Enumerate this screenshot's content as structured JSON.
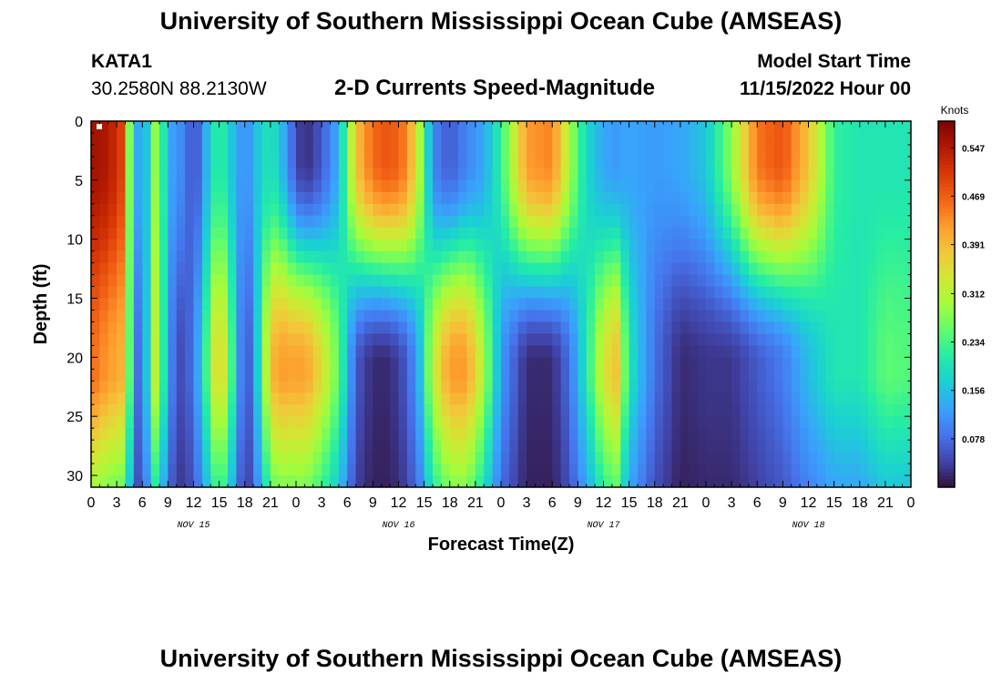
{
  "header": {
    "title": "University of Southern Mississippi Ocean Cube (AMSEAS)",
    "station_id": "KATA1",
    "station_coords": "30.2580N  88.2130W",
    "subtitle": "2-D Currents Speed-Magnitude",
    "model_label": "Model Start Time",
    "model_time": "11/15/2022 Hour 00"
  },
  "footer": {
    "title": "University of Southern Mississippi Ocean Cube (AMSEAS)"
  },
  "colors": {
    "scale": [
      "#30123b",
      "#4145ab",
      "#4675ed",
      "#39a2fc",
      "#1bcfd4",
      "#24eca6",
      "#61fc6c",
      "#a4fc3b",
      "#d1e834",
      "#f3c63a",
      "#fe9b2d",
      "#f36315",
      "#d93806",
      "#b11901",
      "#7a0402"
    ]
  },
  "chart_data": {
    "type": "heatmap",
    "title": "2-D Currents Speed-Magnitude",
    "xlabel": "Forecast Time(Z)",
    "ylabel": "Depth (ft)",
    "x_hours_range": [
      0,
      96
    ],
    "ylim": [
      0,
      31
    ],
    "x_tick_labels": [
      "0",
      "3",
      "6",
      "9",
      "12",
      "15",
      "18",
      "21",
      "0",
      "3",
      "6",
      "9",
      "12",
      "15",
      "18",
      "21",
      "0",
      "3",
      "6",
      "9",
      "12",
      "15",
      "18",
      "21",
      "0",
      "3",
      "6",
      "9",
      "12",
      "15",
      "18",
      "21",
      "0"
    ],
    "y_ticks": [
      0,
      5,
      10,
      15,
      20,
      25,
      30
    ],
    "day_labels": [
      {
        "hour": 12,
        "label": "NOV 15"
      },
      {
        "hour": 36,
        "label": "NOV 16"
      },
      {
        "hour": 60,
        "label": "NOV 17"
      },
      {
        "hour": 84,
        "label": "NOV 18"
      }
    ],
    "colorbar": {
      "label": "Knots",
      "min": 0,
      "max": 0.59,
      "ticks": [
        0.078,
        0.156,
        0.234,
        0.312,
        0.391,
        0.469,
        0.547
      ]
    },
    "time_steps": [
      {
        "t": 0,
        "s": 0.56,
        "b": 0.46
      },
      {
        "t": 2,
        "s": 0.55,
        "b": 0.42
      },
      {
        "t": 3.5,
        "s": 0.5,
        "b": 0.4
      },
      {
        "t": 4.3,
        "s": 0.3,
        "b": 0.3
      },
      {
        "t": 5,
        "s": 0.2,
        "b": 0.12
      },
      {
        "t": 6,
        "s": 0.07,
        "b": 0.04
      },
      {
        "t": 7,
        "s": 0.25,
        "b": 0.28
      },
      {
        "t": 7.8,
        "s": 0.3,
        "b": 0.34
      },
      {
        "t": 9,
        "s": 0.14,
        "b": 0.12
      },
      {
        "t": 10,
        "s": 0.11,
        "b": 0.06
      },
      {
        "t": 11,
        "s": 0.1,
        "b": 0.04
      },
      {
        "t": 12,
        "s": 0.04,
        "b": 0.1
      },
      {
        "t": 13,
        "s": 0.1,
        "b": 0.16
      },
      {
        "t": 14,
        "s": 0.18,
        "b": 0.3
      },
      {
        "t": 15,
        "s": 0.23,
        "b": 0.38
      },
      {
        "t": 16,
        "s": 0.18,
        "b": 0.3
      },
      {
        "t": 17,
        "s": 0.14,
        "b": 0.16
      },
      {
        "t": 18,
        "s": 0.1,
        "b": 0.04
      },
      {
        "t": 19,
        "s": 0.14,
        "b": 0.1
      },
      {
        "t": 20,
        "s": 0.18,
        "b": 0.24
      },
      {
        "t": 21,
        "s": 0.2,
        "b": 0.38
      },
      {
        "t": 22,
        "s": 0.17,
        "b": 0.42
      },
      {
        "t": 24,
        "s": 0.05,
        "b": 0.41
      },
      {
        "t": 25,
        "s": 0.02,
        "b": 0.42
      },
      {
        "t": 27,
        "s": 0.06,
        "b": 0.35
      },
      {
        "t": 29,
        "s": 0.14,
        "b": 0.25
      },
      {
        "t": 31,
        "s": 0.38,
        "b": 0.06
      },
      {
        "t": 33,
        "s": 0.46,
        "b": 0.02
      },
      {
        "t": 35,
        "s": 0.48,
        "b": 0.02
      },
      {
        "t": 37,
        "s": 0.44,
        "b": 0.06
      },
      {
        "t": 38.5,
        "s": 0.3,
        "b": 0.15
      },
      {
        "t": 40,
        "s": 0.1,
        "b": 0.32
      },
      {
        "t": 42,
        "s": 0.06,
        "b": 0.42
      },
      {
        "t": 44,
        "s": 0.1,
        "b": 0.42
      },
      {
        "t": 46,
        "s": 0.13,
        "b": 0.3
      },
      {
        "t": 48,
        "s": 0.22,
        "b": 0.12
      },
      {
        "t": 51,
        "s": 0.42,
        "b": 0.02
      },
      {
        "t": 54,
        "s": 0.44,
        "b": 0.02
      },
      {
        "t": 56,
        "s": 0.3,
        "b": 0.08
      },
      {
        "t": 58,
        "s": 0.18,
        "b": 0.2
      },
      {
        "t": 60,
        "s": 0.13,
        "b": 0.34
      },
      {
        "t": 61.5,
        "s": 0.12,
        "b": 0.38
      },
      {
        "t": 63,
        "s": 0.13,
        "b": 0.2
      },
      {
        "t": 66,
        "s": 0.12,
        "b": 0.08
      },
      {
        "t": 69,
        "s": 0.13,
        "b": 0.02
      },
      {
        "t": 72,
        "s": 0.16,
        "b": 0.03
      },
      {
        "t": 75,
        "s": 0.28,
        "b": 0.03
      },
      {
        "t": 78,
        "s": 0.45,
        "b": 0.06
      },
      {
        "t": 81,
        "s": 0.48,
        "b": 0.09
      },
      {
        "t": 84,
        "s": 0.38,
        "b": 0.15
      },
      {
        "t": 87,
        "s": 0.22,
        "b": 0.2
      },
      {
        "t": 90,
        "s": 0.2,
        "b": 0.2
      },
      {
        "t": 93,
        "s": 0.2,
        "b": 0.25
      },
      {
        "t": 96,
        "s": 0.2,
        "b": 0.24
      }
    ]
  }
}
